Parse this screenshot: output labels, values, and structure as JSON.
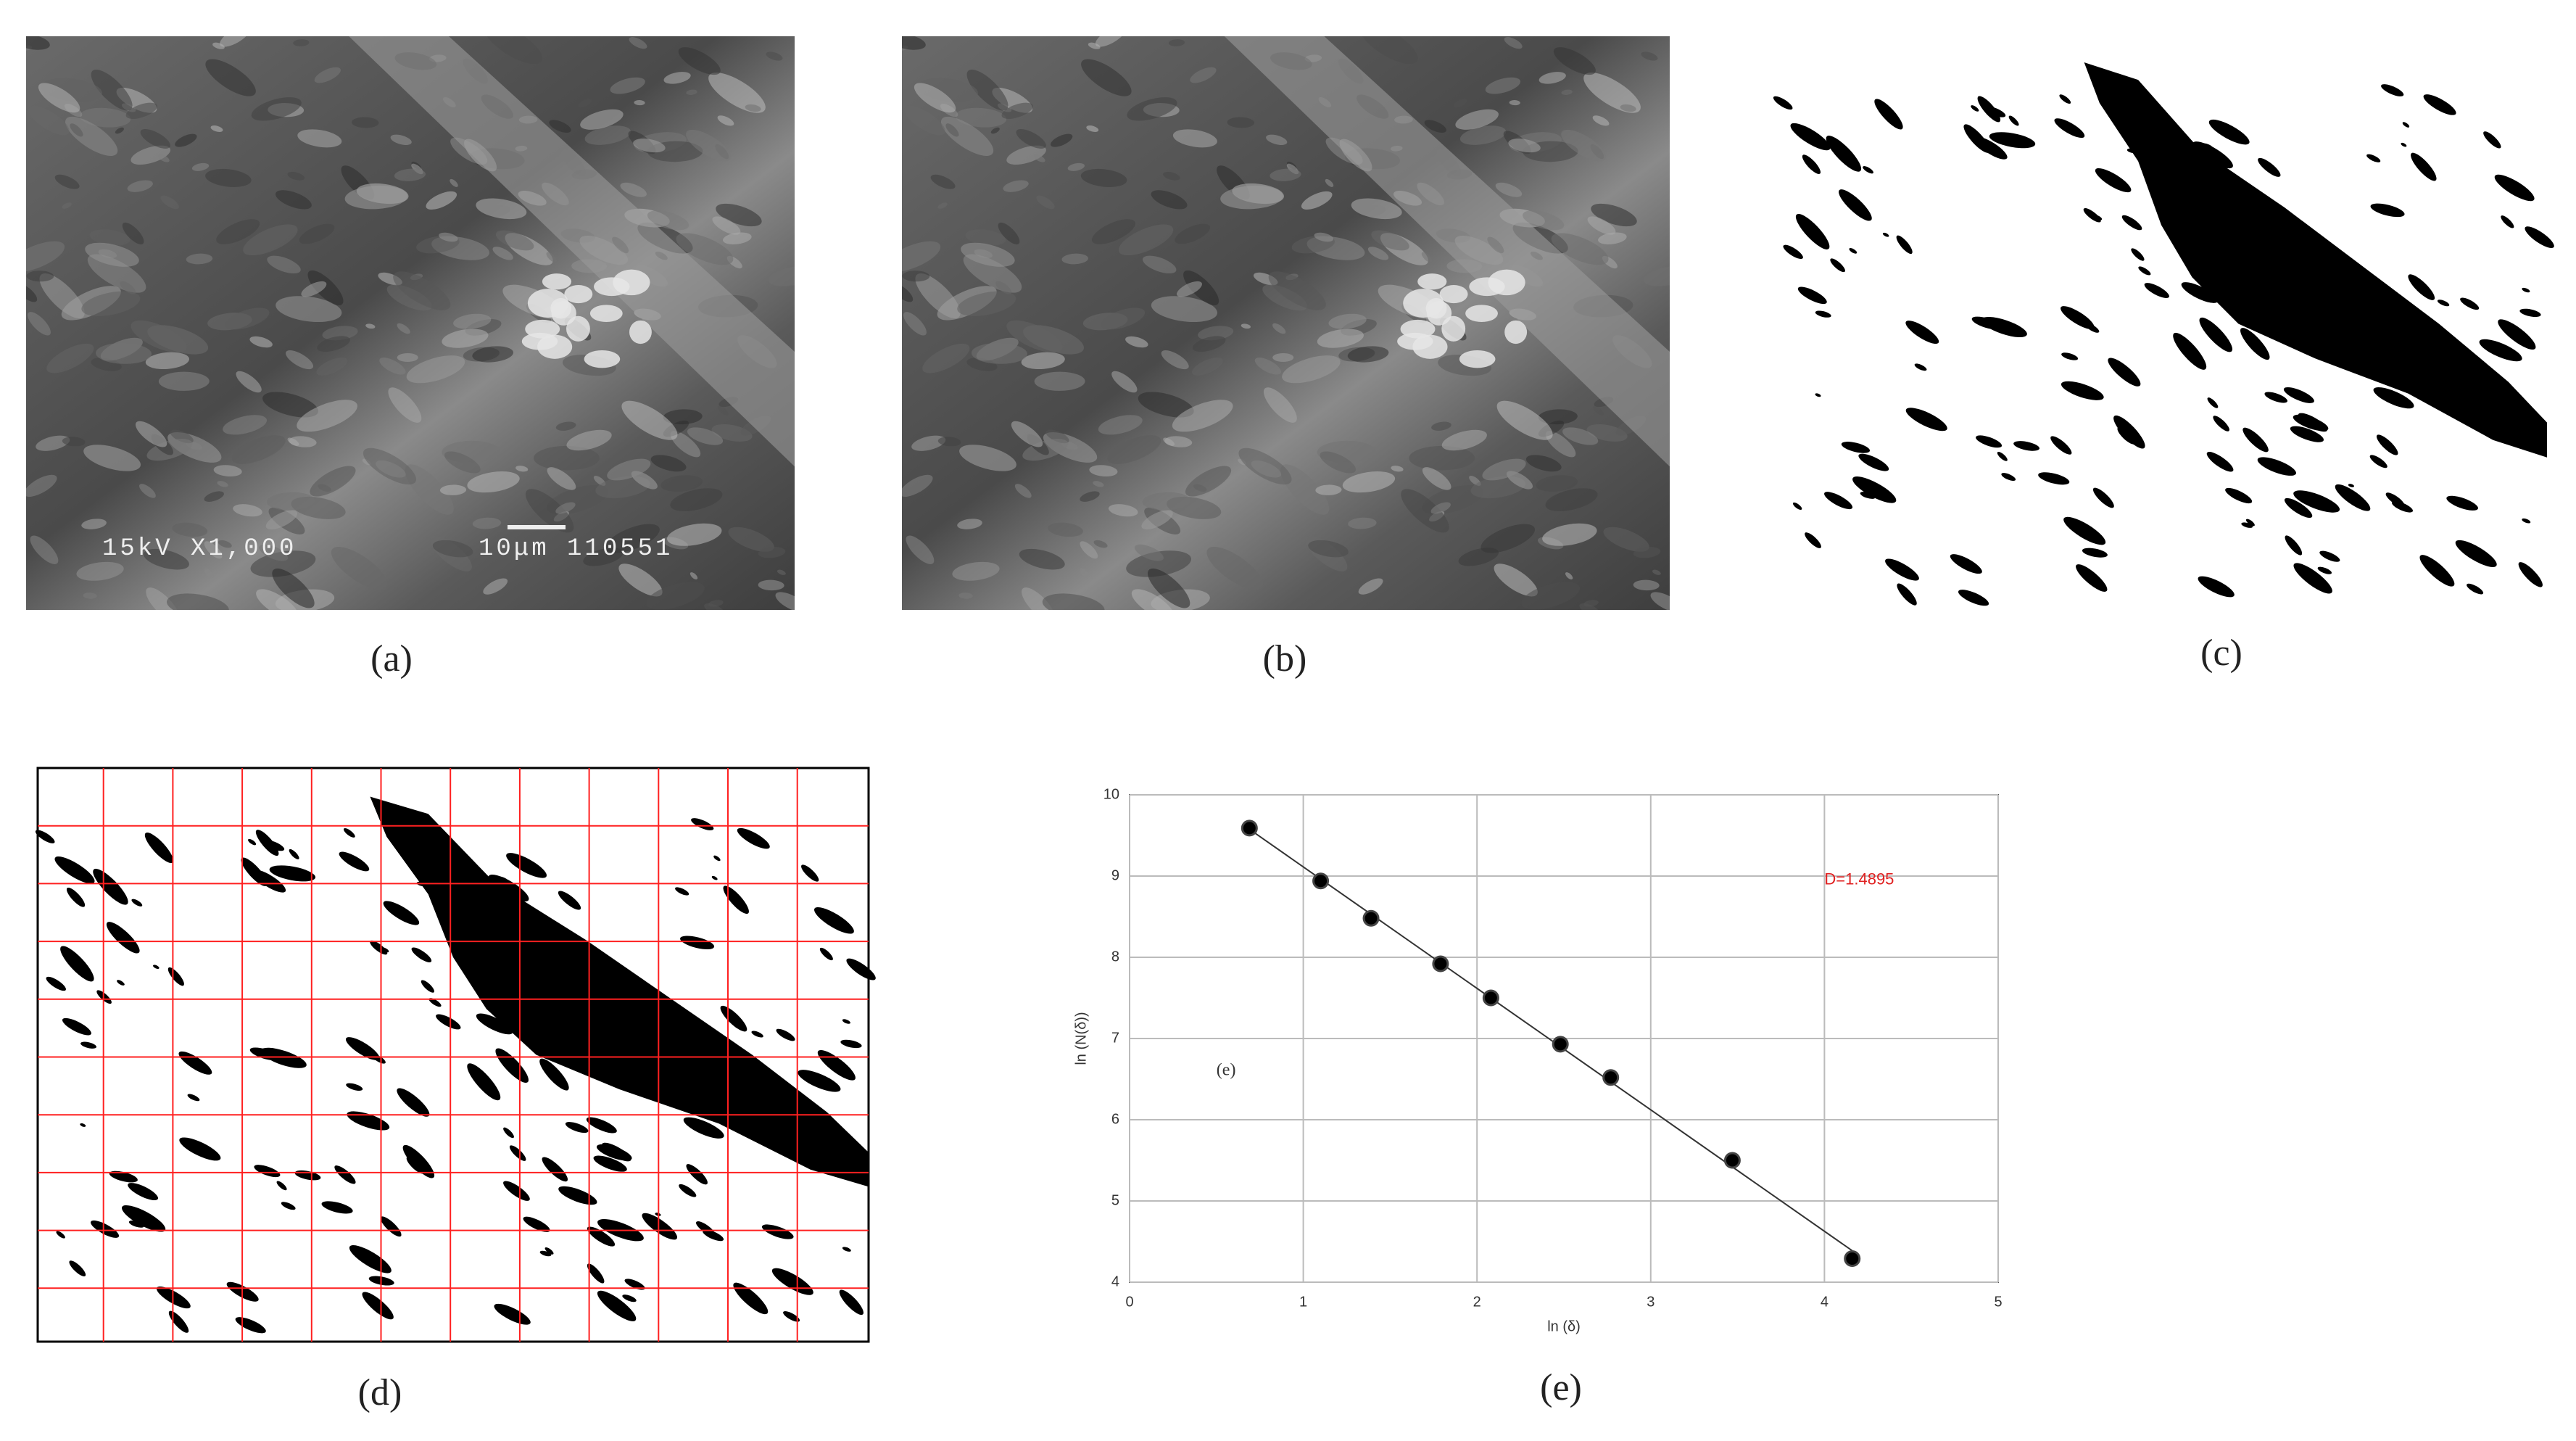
{
  "captions": [
    "(a)",
    "(b)",
    "(c)",
    "(d)",
    "(e)"
  ],
  "sem_labels": [
    "15kV X1,000",
    "10μm 110551"
  ],
  "chart_data": {
    "type": "scatter",
    "x": [
      0.69,
      1.1,
      1.39,
      1.79,
      2.08,
      2.48,
      2.77,
      3.47,
      4.16
    ],
    "values": [
      9.59,
      8.94,
      8.48,
      7.92,
      7.5,
      6.93,
      6.52,
      5.5,
      4.29
    ],
    "xlim": [
      0,
      5
    ],
    "ylim": [
      4,
      10
    ],
    "xticks": [
      0,
      1,
      2,
      3,
      4,
      5
    ],
    "yticks": [
      4,
      5,
      6,
      7,
      8,
      9,
      10
    ],
    "xlabel": "ln (δ)",
    "ylabel": "ln (N(δ))",
    "annotations": [
      "D=1.4895",
      "(e)"
    ],
    "color": "#000000",
    "annotation_color": "#e02020",
    "grid": true,
    "fit_line": true
  }
}
